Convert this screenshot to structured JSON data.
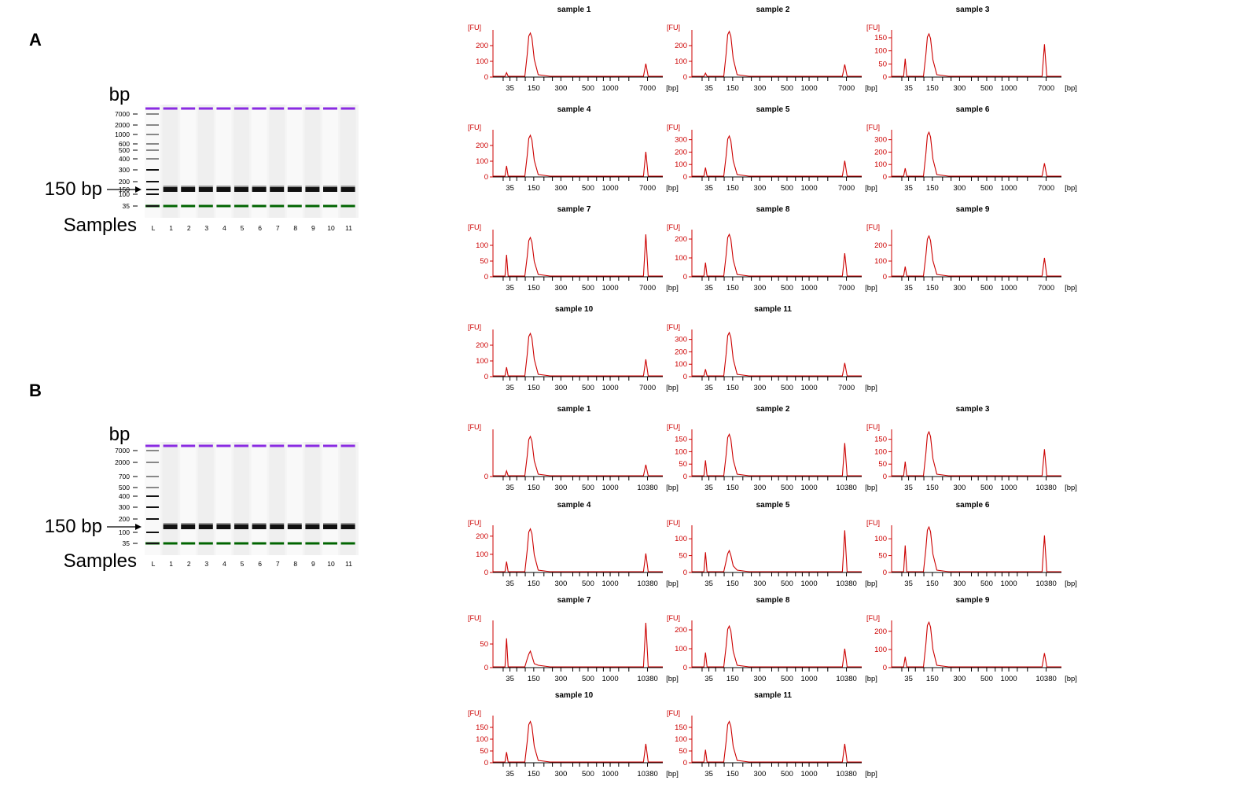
{
  "figure": {
    "panel_labels": [
      "A",
      "B"
    ],
    "gel_bp_label": "bp",
    "gel_arrow_label": "150 bp",
    "gel_samples_label": "Samples",
    "gel_lane_labels": [
      "L",
      "1",
      "2",
      "3",
      "4",
      "5",
      "6",
      "7",
      "8",
      "9",
      "10",
      "11"
    ],
    "ep_y_unit": "[FU]",
    "ep_x_unit": "[bp]"
  },
  "colors": {
    "trace": "#cc0000",
    "upper_marker": "#8a2be2",
    "lower_marker": "#006400"
  },
  "chart_data": [
    {
      "type": "gel",
      "panel": "A",
      "ladder_bp": [
        "7000",
        "2000",
        "1000",
        "600",
        "500",
        "400",
        "300",
        "200",
        "150",
        "100",
        "35"
      ],
      "lanes": [
        "L",
        "1",
        "2",
        "3",
        "4",
        "5",
        "6",
        "7",
        "8",
        "9",
        "10",
        "11"
      ],
      "band_bp": 150
    },
    {
      "type": "gel",
      "panel": "B",
      "ladder_bp": [
        "7000",
        "2000",
        "700",
        "500",
        "400",
        "300",
        "200",
        "100",
        "35"
      ],
      "lanes": [
        "L",
        "1",
        "2",
        "3",
        "4",
        "5",
        "6",
        "7",
        "8",
        "9",
        "10",
        "11"
      ],
      "band_bp": 150
    },
    {
      "type": "electropherogram",
      "panel": "A",
      "x_ticks": [
        "35",
        "150",
        "300",
        "500",
        "1000",
        "7000"
      ],
      "x_label": "[bp]",
      "y_label": "[FU]",
      "samples": [
        {
          "title": "sample 1",
          "y_ticks": [
            0,
            100,
            200
          ],
          "ymax": 300,
          "peaks": {
            "35": 28,
            "150": 280,
            "upper": 85
          }
        },
        {
          "title": "sample 2",
          "y_ticks": [
            0,
            100,
            200
          ],
          "ymax": 300,
          "peaks": {
            "35": 25,
            "150": 290,
            "upper": 80
          }
        },
        {
          "title": "sample 3",
          "y_ticks": [
            0,
            50,
            100,
            150
          ],
          "ymax": 180,
          "peaks": {
            "35": 70,
            "150": 165,
            "upper": 125
          }
        },
        {
          "title": "sample 4",
          "y_ticks": [
            0,
            100,
            200
          ],
          "ymax": 300,
          "peaks": {
            "35": 70,
            "150": 265,
            "upper": 160
          }
        },
        {
          "title": "sample 5",
          "y_ticks": [
            0,
            100,
            200,
            300
          ],
          "ymax": 380,
          "peaks": {
            "35": 75,
            "150": 330,
            "upper": 130
          }
        },
        {
          "title": "sample 6",
          "y_ticks": [
            0,
            100,
            200,
            300
          ],
          "ymax": 380,
          "peaks": {
            "35": 70,
            "150": 360,
            "upper": 110
          }
        },
        {
          "title": "sample 7",
          "y_ticks": [
            0,
            50,
            100
          ],
          "ymax": 150,
          "peaks": {
            "35": 70,
            "150": 125,
            "upper": 135
          }
        },
        {
          "title": "sample 8",
          "y_ticks": [
            0,
            100,
            200
          ],
          "ymax": 250,
          "peaks": {
            "35": 75,
            "150": 225,
            "upper": 125
          }
        },
        {
          "title": "sample 9",
          "y_ticks": [
            0,
            100,
            200
          ],
          "ymax": 300,
          "peaks": {
            "35": 65,
            "150": 260,
            "upper": 120
          }
        },
        {
          "title": "sample 10",
          "y_ticks": [
            0,
            100,
            200
          ],
          "ymax": 300,
          "peaks": {
            "35": 60,
            "150": 275,
            "upper": 110
          }
        },
        {
          "title": "sample 11",
          "y_ticks": [
            0,
            100,
            200,
            300
          ],
          "ymax": 380,
          "peaks": {
            "35": 60,
            "150": 355,
            "upper": 110
          }
        }
      ]
    },
    {
      "type": "electropherogram",
      "panel": "B",
      "x_ticks": [
        "35",
        "150",
        "300",
        "500",
        "1000",
        "10380"
      ],
      "x_label": "[bp]",
      "y_label": "[FU]",
      "samples": [
        {
          "title": "sample 1",
          "y_ticks": [
            0
          ],
          "ymax": 100,
          "peaks": {
            "35": 12,
            "150": 85,
            "upper": 25
          }
        },
        {
          "title": "sample 2",
          "y_ticks": [
            0,
            50,
            100,
            150
          ],
          "ymax": 190,
          "peaks": {
            "35": 65,
            "150": 170,
            "upper": 135
          }
        },
        {
          "title": "sample 3",
          "y_ticks": [
            0,
            50,
            100,
            150
          ],
          "ymax": 190,
          "peaks": {
            "35": 60,
            "150": 180,
            "upper": 110
          }
        },
        {
          "title": "sample 4",
          "y_ticks": [
            0,
            100,
            200
          ],
          "ymax": 260,
          "peaks": {
            "35": 60,
            "150": 240,
            "upper": 105
          }
        },
        {
          "title": "sample 5",
          "y_ticks": [
            0,
            50,
            100
          ],
          "ymax": 140,
          "peaks": {
            "35": 60,
            "150": 65,
            "upper": 125
          }
        },
        {
          "title": "sample 6",
          "y_ticks": [
            0,
            50,
            100
          ],
          "ymax": 140,
          "peaks": {
            "35": 80,
            "150": 135,
            "upper": 110
          }
        },
        {
          "title": "sample 7",
          "y_ticks": [
            0,
            50
          ],
          "ymax": 100,
          "peaks": {
            "35": 62,
            "150": 35,
            "upper": 95
          }
        },
        {
          "title": "sample 8",
          "y_ticks": [
            0,
            100,
            200
          ],
          "ymax": 250,
          "peaks": {
            "35": 80,
            "150": 220,
            "upper": 100
          }
        },
        {
          "title": "sample 9",
          "y_ticks": [
            0,
            100,
            200
          ],
          "ymax": 260,
          "peaks": {
            "35": 60,
            "150": 250,
            "upper": 80
          }
        },
        {
          "title": "sample 10",
          "y_ticks": [
            0,
            50,
            100,
            150
          ],
          "ymax": 200,
          "peaks": {
            "35": 45,
            "150": 175,
            "upper": 80
          }
        },
        {
          "title": "sample 11",
          "y_ticks": [
            0,
            50,
            100,
            150
          ],
          "ymax": 200,
          "peaks": {
            "35": 55,
            "150": 175,
            "upper": 80
          }
        }
      ]
    }
  ]
}
